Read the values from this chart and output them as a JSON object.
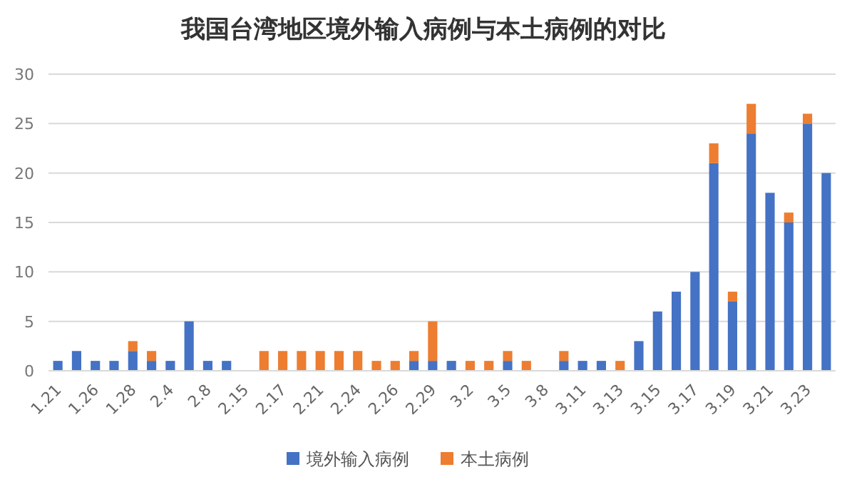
{
  "chart_data": {
    "type": "bar",
    "title": "我国台湾地区境外输入病例与本土病例的对比",
    "categories": [
      "1.21",
      null,
      "1.26",
      null,
      "1.28",
      null,
      "2.4",
      null,
      "2.8",
      null,
      "2.15",
      null,
      "2.17",
      null,
      "2.21",
      null,
      "2.24",
      null,
      "2.26",
      null,
      "2.29",
      null,
      "3.2",
      null,
      "3.5",
      null,
      "3.8",
      null,
      "3.11",
      null,
      "3.13",
      null,
      "3.15",
      null,
      "3.17",
      null,
      "3.19",
      null,
      "3.21",
      null,
      "3.23",
      null
    ],
    "stacked": true,
    "series": [
      {
        "name": "境外输入病例",
        "color": "#4472c4",
        "values": [
          1,
          2,
          1,
          1,
          2,
          1,
          1,
          5,
          1,
          1,
          0,
          0,
          0,
          0,
          0,
          0,
          0,
          0,
          0,
          1,
          1,
          1,
          0,
          0,
          1,
          0,
          0,
          1,
          1,
          1,
          0,
          3,
          6,
          8,
          10,
          21,
          7,
          24,
          18,
          15,
          25,
          20
        ]
      },
      {
        "name": "本土病例",
        "color": "#ed7d31",
        "values": [
          0,
          0,
          0,
          0,
          1,
          1,
          0,
          0,
          0,
          0,
          0,
          2,
          2,
          2,
          2,
          2,
          2,
          1,
          1,
          1,
          4,
          0,
          1,
          1,
          1,
          1,
          0,
          1,
          0,
          0,
          1,
          0,
          0,
          0,
          0,
          2,
          1,
          3,
          0,
          1,
          1,
          0
        ]
      }
    ],
    "ylim": [
      0,
      30
    ],
    "yticks": [
      0,
      5,
      10,
      15,
      20,
      25,
      30
    ],
    "grid": "y",
    "legend": "bottom"
  }
}
